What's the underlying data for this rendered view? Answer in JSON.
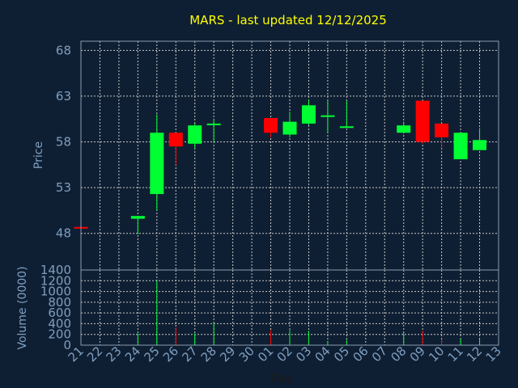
{
  "chart_data": {
    "type": "candlestick",
    "title": "MARS - last updated 12/12/2025",
    "colors": {
      "background": "#0f1f33",
      "up": "#00ff33",
      "down": "#ff0000",
      "title": "#ffff00",
      "axis_text": "#7f9fbf",
      "grid": "#c8c8c8",
      "frame": "#8a9bb0"
    },
    "grid": true,
    "price_panel": {
      "ylabel": "Price",
      "ylim": [
        44,
        69
      ],
      "yticks": [
        "48",
        "53",
        "58",
        "63",
        "68"
      ]
    },
    "volume_panel": {
      "ylabel": "Volume (0000)",
      "ylim": [
        0,
        1400
      ],
      "yticks": [
        "0",
        "200",
        "400",
        "600",
        "800",
        "1000",
        "1200",
        "1400"
      ]
    },
    "xlabel": "Day",
    "x_ticks": [
      "21",
      "22",
      "23",
      "24",
      "25",
      "26",
      "27",
      "28",
      "29",
      "30",
      "01",
      "02",
      "03",
      "04",
      "05",
      "06",
      "07",
      "08",
      "09",
      "10",
      "11",
      "12",
      "13"
    ],
    "candles": [
      {
        "x": "21",
        "open": 48.7,
        "high": 48.7,
        "low": 48.7,
        "close": 48.6,
        "volume": 0
      },
      {
        "x": "24",
        "open": 49.6,
        "high": 49.9,
        "low": 47.9,
        "close": 49.9,
        "volume": 220
      },
      {
        "x": "25",
        "open": 52.3,
        "high": 61.0,
        "low": 50.5,
        "close": 59.0,
        "volume": 1200
      },
      {
        "x": "26",
        "open": 59.0,
        "high": 59.0,
        "low": 55.5,
        "close": 57.5,
        "volume": 330
      },
      {
        "x": "27",
        "open": 57.8,
        "high": 60.0,
        "low": 57.3,
        "close": 59.8,
        "volume": 220
      },
      {
        "x": "28",
        "open": 60.0,
        "high": 60.4,
        "low": 58.0,
        "close": 60.0,
        "volume": 400
      },
      {
        "x": "01",
        "open": 60.6,
        "high": 60.6,
        "low": 58.5,
        "close": 59.0,
        "volume": 280
      },
      {
        "x": "02",
        "open": 58.8,
        "high": 61.3,
        "low": 58.5,
        "close": 60.2,
        "volume": 280
      },
      {
        "x": "03",
        "open": 60.0,
        "high": 62.6,
        "low": 59.8,
        "close": 62.0,
        "volume": 270
      },
      {
        "x": "04",
        "open": 60.9,
        "high": 62.5,
        "low": 59.0,
        "close": 60.9,
        "volume": 80
      },
      {
        "x": "05",
        "open": 59.7,
        "high": 62.5,
        "low": 59.7,
        "close": 59.7,
        "volume": 100
      },
      {
        "x": "08",
        "open": 59.0,
        "high": 60.2,
        "low": 59.0,
        "close": 59.8,
        "volume": 230
      },
      {
        "x": "09",
        "open": 62.5,
        "high": 62.5,
        "low": 57.8,
        "close": 58.0,
        "volume": 270
      },
      {
        "x": "10",
        "open": 60.0,
        "high": 60.0,
        "low": 57.3,
        "close": 58.5,
        "volume": 110
      },
      {
        "x": "11",
        "open": 56.1,
        "high": 59.0,
        "low": 56.1,
        "close": 59.0,
        "volume": 120
      },
      {
        "x": "12",
        "open": 57.1,
        "high": 59.5,
        "low": 57.1,
        "close": 58.2,
        "volume": 110
      }
    ]
  }
}
